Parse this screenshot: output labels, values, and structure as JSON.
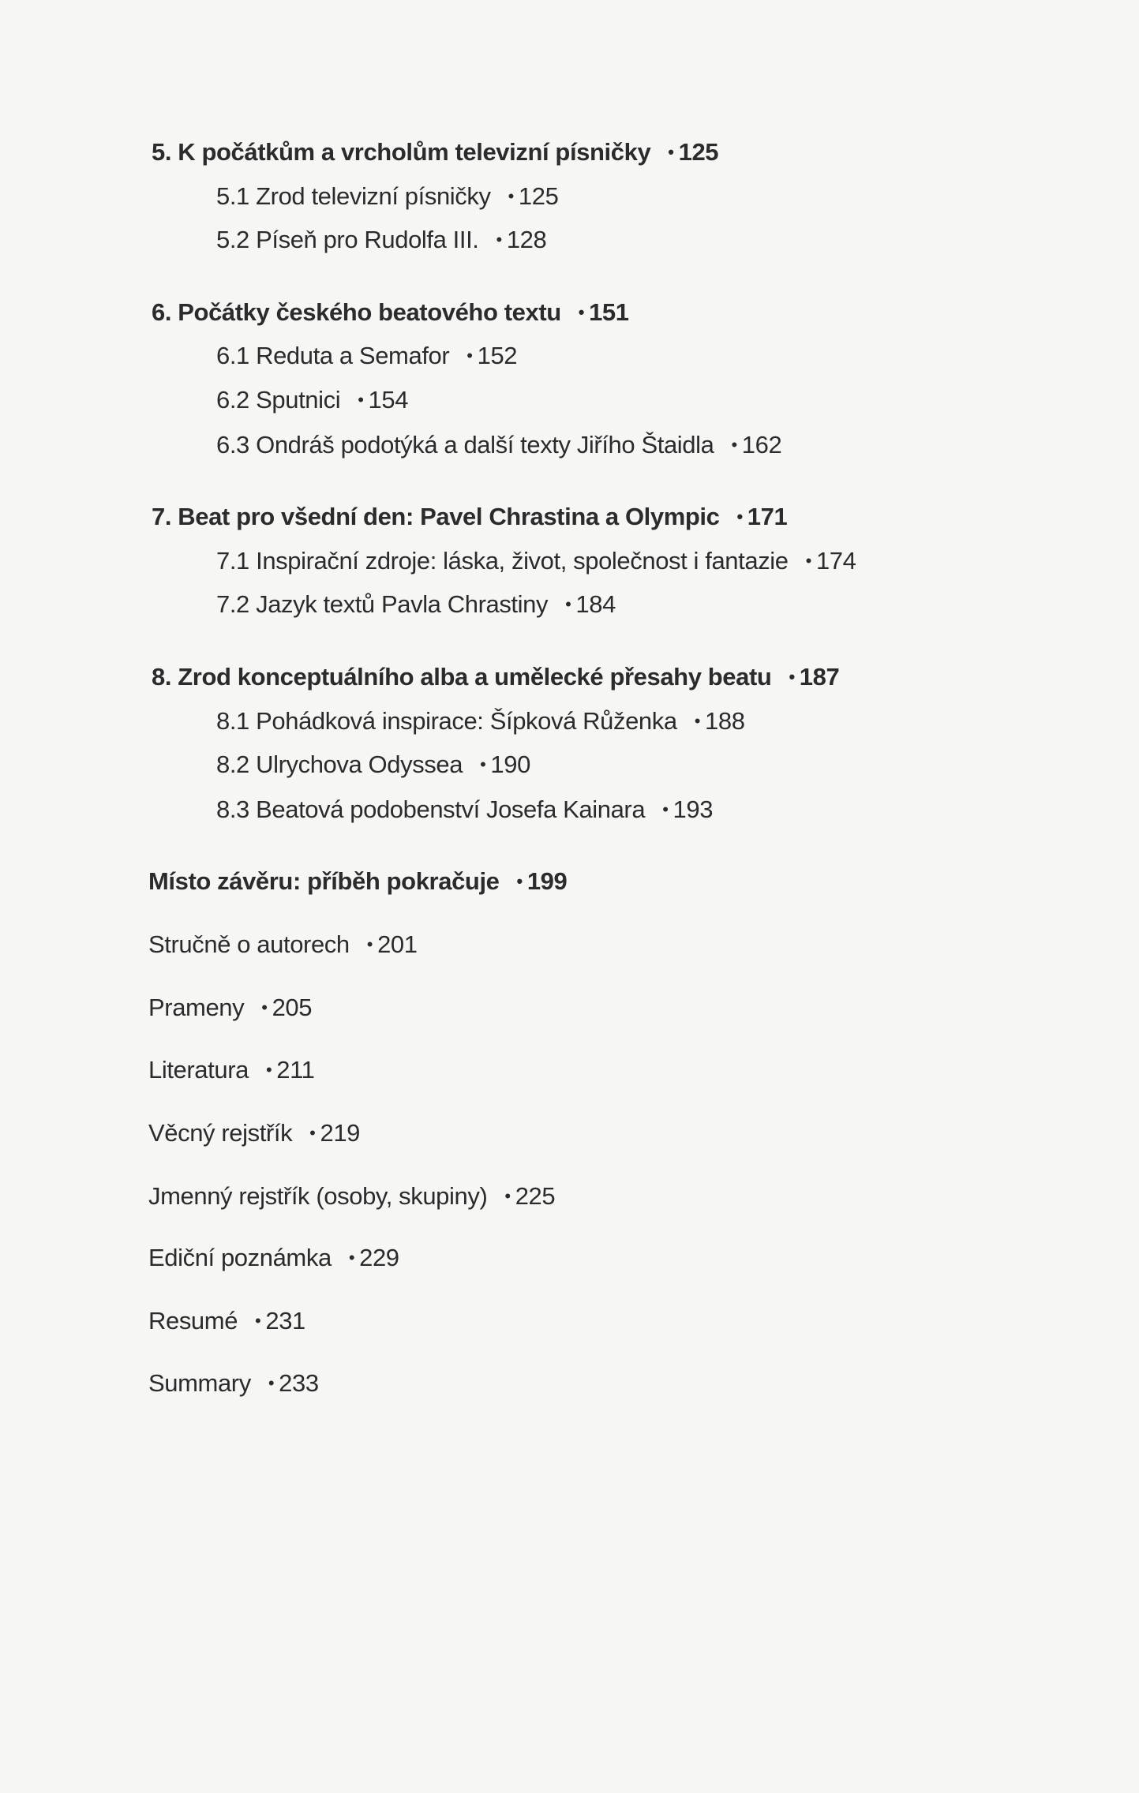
{
  "toc": [
    {
      "kind": "main",
      "bold": true,
      "title": "5. K počátkům a vrcholům televizní písničky",
      "page": "125"
    },
    {
      "kind": "sub",
      "bold": false,
      "title": "5.1 Zrod televizní písničky",
      "page": "125"
    },
    {
      "kind": "sub",
      "bold": false,
      "title": "5.2 Píseň pro Rudolfa III.",
      "page": "128"
    },
    {
      "kind": "main",
      "bold": true,
      "title": "6. Počátky českého beatového textu",
      "page": "151"
    },
    {
      "kind": "sub",
      "bold": false,
      "title": "6.1 Reduta a Semafor",
      "page": "152"
    },
    {
      "kind": "sub",
      "bold": false,
      "title": "6.2 Sputnici",
      "page": "154"
    },
    {
      "kind": "sub",
      "bold": false,
      "title": "6.3 Ondráš podotýká a další texty Jiřího Štaidla",
      "page": "162"
    },
    {
      "kind": "main",
      "bold": true,
      "title": "7. Beat pro všední den: Pavel Chrastina a Olympic",
      "page": "171"
    },
    {
      "kind": "sub",
      "bold": false,
      "title": "7.1 Inspirační zdroje: láska, život, společnost i fantazie",
      "page": "174"
    },
    {
      "kind": "sub",
      "bold": false,
      "title": "7.2 Jazyk textů Pavla Chrastiny",
      "page": "184"
    },
    {
      "kind": "main",
      "bold": true,
      "title": "8. Zrod konceptuálního alba a umělecké přesahy beatu",
      "page": "187"
    },
    {
      "kind": "sub",
      "bold": false,
      "title": "8.1 Pohádková inspirace: Šípková Růženka",
      "page": "188"
    },
    {
      "kind": "sub",
      "bold": false,
      "title": "8.2 Ulrychova Odyssea",
      "page": "190"
    },
    {
      "kind": "sub",
      "bold": false,
      "title": "8.3 Beatová podobenství Josefa Kainara",
      "page": "193"
    },
    {
      "kind": "back",
      "bold": true,
      "title": "Místo závěru: příběh pokračuje",
      "page": "199"
    },
    {
      "kind": "back",
      "bold": false,
      "title": "Stručně o autorech",
      "page": "201"
    },
    {
      "kind": "back",
      "bold": false,
      "title": "Prameny",
      "page": "205"
    },
    {
      "kind": "back",
      "bold": false,
      "title": "Literatura",
      "page": "211"
    },
    {
      "kind": "back",
      "bold": false,
      "title": "Věcný rejstřík",
      "page": "219"
    },
    {
      "kind": "back",
      "bold": false,
      "title": "Jmenný rejstřík (osoby, skupiny)",
      "page": "225"
    },
    {
      "kind": "back",
      "bold": false,
      "title": "Ediční poznámka",
      "page": "229"
    },
    {
      "kind": "back",
      "bold": false,
      "title": "Resumé",
      "page": "231"
    },
    {
      "kind": "back",
      "bold": false,
      "title": "Summary",
      "page": "233"
    }
  ],
  "bullet_symbol": "•"
}
